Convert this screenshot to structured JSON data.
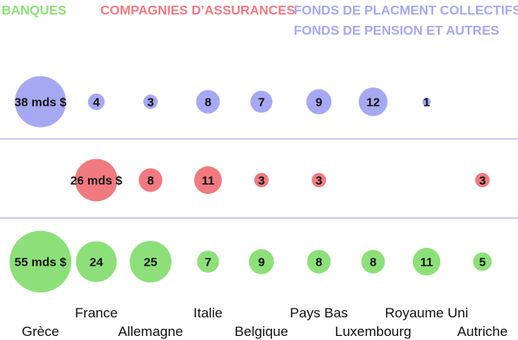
{
  "chart_data": {
    "type": "bubble",
    "unit": "mds $",
    "legend": [
      {
        "name": "BANQUES",
        "lines": [
          "BANQUES"
        ],
        "color": "#8de079"
      },
      {
        "name": "COMPAGNIES D’ASSURANCES",
        "lines": [
          "COMPAGNIES D’ASSURANCES"
        ],
        "color": "#f17a80"
      },
      {
        "name": "FONDS DE PLACMENT COLLECTIFS, FONDS DE PENSION ET AUTRES",
        "lines": [
          "FONDS DE PLACMENT COLLECTIFS,",
          "FONDS DE PENSION ET AUTRES"
        ],
        "color": "#a6a9f2"
      }
    ],
    "categories": [
      "Grèce",
      "France",
      "Allemagne",
      "Italie",
      "Belgique",
      "Pays Bas",
      "Luxembourg",
      "Royaume Uni",
      "Autriche"
    ],
    "series": [
      {
        "name": "FONDS DE PLACMENT COLLECTIFS, FONDS DE PENSION ET AUTRES",
        "color": "#a6a9f2",
        "values": [
          38,
          4,
          3,
          8,
          7,
          9,
          12,
          1,
          null
        ],
        "labels": [
          "38 mds $",
          "4",
          "3",
          "8",
          "7",
          "9",
          "12",
          "1",
          ""
        ]
      },
      {
        "name": "COMPAGNIES D’ASSURANCES",
        "color": "#f17a80",
        "values": [
          null,
          26,
          8,
          11,
          3,
          3,
          null,
          null,
          3
        ],
        "labels": [
          "",
          "26 mds $",
          "8",
          "11",
          "3",
          "3",
          "",
          "",
          "3"
        ]
      },
      {
        "name": "BANQUES",
        "color": "#8de079",
        "values": [
          55,
          24,
          25,
          7,
          9,
          8,
          8,
          11,
          5
        ],
        "labels": [
          "55 mds $",
          "24",
          "25",
          "7",
          "9",
          "8",
          "8",
          "11",
          "5"
        ]
      }
    ],
    "separator_color": "#b9bcee"
  }
}
